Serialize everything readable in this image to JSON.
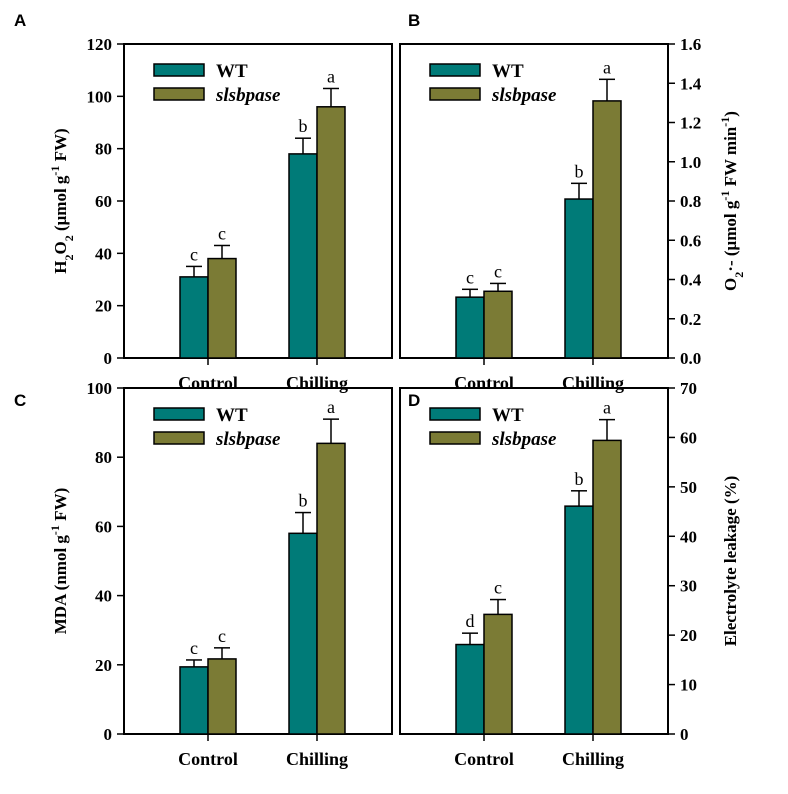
{
  "chart_data": [
    {
      "panel": "A",
      "type": "bar",
      "categories": [
        "Control",
        "Chilling"
      ],
      "series": [
        {
          "name": "WT",
          "color": "#007b78",
          "values": [
            31,
            78
          ],
          "errors": [
            4,
            6
          ],
          "letters": [
            "c",
            "b"
          ]
        },
        {
          "name": "slsbpase",
          "color": "#7b7b35",
          "values": [
            38,
            96
          ],
          "errors": [
            5,
            7
          ],
          "letters": [
            "c",
            "a"
          ]
        }
      ],
      "ylim": [
        0,
        120
      ],
      "ytick_step": 20,
      "ytick_decimals": 0,
      "yaxis_side": "left",
      "ylabel": [
        {
          "t": "H"
        },
        {
          "t": "2",
          "sub": true
        },
        {
          "t": "O"
        },
        {
          "t": "2",
          "sub": true
        },
        {
          "t": " (μmol g"
        },
        {
          "t": "-1",
          "sup": true
        },
        {
          "t": " FW)"
        }
      ],
      "legend": "top-left"
    },
    {
      "panel": "B",
      "type": "bar",
      "categories": [
        "Control",
        "Chilling"
      ],
      "series": [
        {
          "name": "WT",
          "color": "#007b78",
          "values": [
            0.31,
            0.81
          ],
          "errors": [
            0.04,
            0.08
          ],
          "letters": [
            "c",
            "b"
          ]
        },
        {
          "name": "slsbpase",
          "color": "#7b7b35",
          "values": [
            0.34,
            1.31
          ],
          "errors": [
            0.04,
            0.11
          ],
          "letters": [
            "c",
            "a"
          ]
        }
      ],
      "ylim": [
        0,
        1.6
      ],
      "ytick_step": 0.2,
      "ytick_decimals": 1,
      "yaxis_side": "right",
      "ylabel": [
        {
          "t": "O"
        },
        {
          "t": "2",
          "sub": true
        },
        {
          "t": "·-"
        },
        {
          "t": " (μmol g"
        },
        {
          "t": "-1",
          "sup": true
        },
        {
          "t": " FW min"
        },
        {
          "t": "-1",
          "sup": true
        },
        {
          "t": ")"
        }
      ],
      "legend": "top-left"
    },
    {
      "panel": "C",
      "type": "bar",
      "categories": [
        "Control",
        "Chilling"
      ],
      "series": [
        {
          "name": "WT",
          "color": "#007b78",
          "values": [
            19.4,
            58
          ],
          "errors": [
            2,
            6
          ],
          "letters": [
            "c",
            "b"
          ]
        },
        {
          "name": "slsbpase",
          "color": "#7b7b35",
          "values": [
            21.7,
            84
          ],
          "errors": [
            3.2,
            7
          ],
          "letters": [
            "c",
            "a"
          ]
        }
      ],
      "ylim": [
        0,
        100
      ],
      "ytick_step": 20,
      "ytick_decimals": 0,
      "yaxis_side": "left",
      "ylabel": [
        {
          "t": "MDA (nmol g"
        },
        {
          "t": "-1",
          "sup": true
        },
        {
          "t": " FW)"
        }
      ],
      "legend": "top-left"
    },
    {
      "panel": "D",
      "type": "bar",
      "categories": [
        "Control",
        "Chilling"
      ],
      "series": [
        {
          "name": "WT",
          "color": "#007b78",
          "values": [
            18.1,
            46.1
          ],
          "errors": [
            2.3,
            3.1
          ],
          "letters": [
            "d",
            "b"
          ]
        },
        {
          "name": "slsbpase",
          "color": "#7b7b35",
          "values": [
            24.2,
            59.4
          ],
          "errors": [
            3,
            4.2
          ],
          "letters": [
            "c",
            "a"
          ]
        }
      ],
      "ylim": [
        0,
        70
      ],
      "ytick_step": 10,
      "ytick_decimals": 0,
      "yaxis_side": "right",
      "ylabel": [
        {
          "t": "Electrolyte leakage (%)"
        }
      ],
      "legend": "top-left"
    }
  ]
}
